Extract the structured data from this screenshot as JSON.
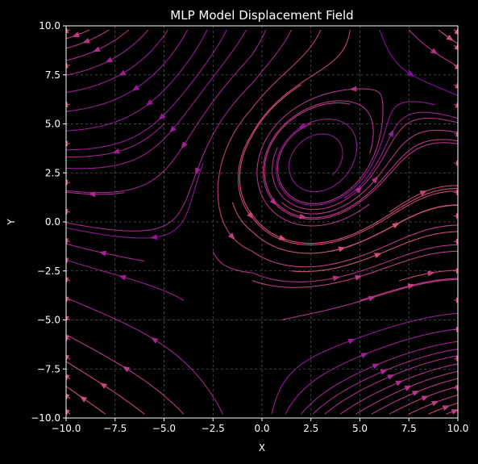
{
  "chart_data": {
    "type": "streamplot",
    "title": "MLP Model Displacement Field",
    "xlabel": "X",
    "ylabel": "Y",
    "xlim": [
      -10,
      10
    ],
    "ylim": [
      -10,
      10
    ],
    "xticks": [
      -10.0,
      -7.5,
      -5.0,
      -2.5,
      0.0,
      2.5,
      5.0,
      7.5,
      10.0
    ],
    "yticks": [
      -10.0,
      -7.5,
      -5.0,
      -2.5,
      0.0,
      2.5,
      5.0,
      7.5,
      10.0
    ],
    "xtick_labels": [
      "−10.0",
      "−7.5",
      "−5.0",
      "−2.5",
      "0.0",
      "2.5",
      "5.0",
      "7.5",
      "10.0"
    ],
    "ytick_labels": [
      "−10.0",
      "−7.5",
      "−5.0",
      "−2.5",
      "0.0",
      "2.5",
      "5.0",
      "7.5",
      "10.0"
    ],
    "grid": true,
    "colormap": "plasma",
    "background": "#000000",
    "vortex_center": [
      2.2,
      2.6
    ],
    "stream_start_points": [
      [
        -9.8,
        9.8
      ],
      [
        -8.8,
        9.8
      ],
      [
        -7.8,
        9.8
      ],
      [
        -6.8,
        9.8
      ],
      [
        -5.8,
        9.8
      ],
      [
        -4.8,
        9.8
      ],
      [
        -3.8,
        9.8
      ],
      [
        -2.8,
        9.8
      ],
      [
        -1.8,
        9.8
      ],
      [
        -0.8,
        9.8
      ],
      [
        0.2,
        9.8
      ],
      [
        -9.8,
        8.0
      ],
      [
        -9.8,
        6.0
      ],
      [
        -9.8,
        4.0
      ],
      [
        -9.8,
        2.0
      ],
      [
        -9.8,
        0.5
      ],
      [
        -9.8,
        -1.0
      ],
      [
        -9.8,
        -2.0
      ],
      [
        -9.8,
        -3.0
      ],
      [
        -9.8,
        -4.0
      ],
      [
        -9.8,
        -5.0
      ],
      [
        -9.8,
        -6.0
      ],
      [
        -9.8,
        -7.0
      ],
      [
        -9.8,
        -8.0
      ],
      [
        -9.8,
        -9.0
      ],
      [
        -9.8,
        -9.8
      ],
      [
        -8.0,
        -9.8
      ],
      [
        -6.0,
        -9.8
      ],
      [
        -4.0,
        -9.8
      ],
      [
        -2.0,
        -9.8
      ],
      [
        0.5,
        -9.8
      ],
      [
        1.2,
        -9.8
      ],
      [
        2.0,
        -9.8
      ],
      [
        2.6,
        -9.8
      ],
      [
        3.2,
        -9.8
      ],
      [
        4.0,
        -9.8
      ],
      [
        4.8,
        -9.8
      ],
      [
        5.6,
        -9.8
      ],
      [
        6.5,
        -9.8
      ],
      [
        7.5,
        -9.8
      ],
      [
        8.5,
        -9.8
      ],
      [
        9.4,
        -9.8
      ],
      [
        9.8,
        -8.5
      ],
      [
        9.8,
        -7.0
      ],
      [
        9.8,
        -5.5
      ],
      [
        9.8,
        -4.0
      ],
      [
        9.8,
        -2.5
      ],
      [
        9.8,
        -1.0
      ],
      [
        9.8,
        0.3
      ],
      [
        9.8,
        1.5
      ],
      [
        9.8,
        3.0
      ],
      [
        9.8,
        4.5
      ],
      [
        9.8,
        6.0
      ],
      [
        9.8,
        7.0
      ],
      [
        9.8,
        8.0
      ],
      [
        9.8,
        9.0
      ],
      [
        9.8,
        9.8
      ],
      [
        1.5,
        9.8
      ],
      [
        3.0,
        9.8
      ],
      [
        4.5,
        9.8
      ],
      [
        6.0,
        9.8
      ],
      [
        7.5,
        9.8
      ],
      [
        9.0,
        9.8
      ],
      [
        -5.0,
        5.0
      ],
      [
        -3.0,
        3.0
      ],
      [
        -1.5,
        1.0
      ],
      [
        -2.5,
        -1.5
      ],
      [
        -0.5,
        -3.0
      ],
      [
        1.0,
        -5.0
      ],
      [
        -4.0,
        -4.0
      ],
      [
        -6.0,
        -2.0
      ],
      [
        -7.0,
        1.5
      ],
      [
        3.6,
        2.4
      ],
      [
        4.2,
        1.2
      ],
      [
        2.5,
        5.0
      ],
      [
        0.8,
        3.8
      ],
      [
        5.5,
        3.5
      ],
      [
        6.5,
        0.5
      ],
      [
        3.5,
        -1.5
      ],
      [
        1.5,
        -2.5
      ],
      [
        5.0,
        -4.0
      ],
      [
        7.0,
        -3.0
      ],
      [
        2.0,
        7.0
      ],
      [
        4.5,
        6.0
      ],
      [
        1.0,
        1.0
      ]
    ]
  }
}
